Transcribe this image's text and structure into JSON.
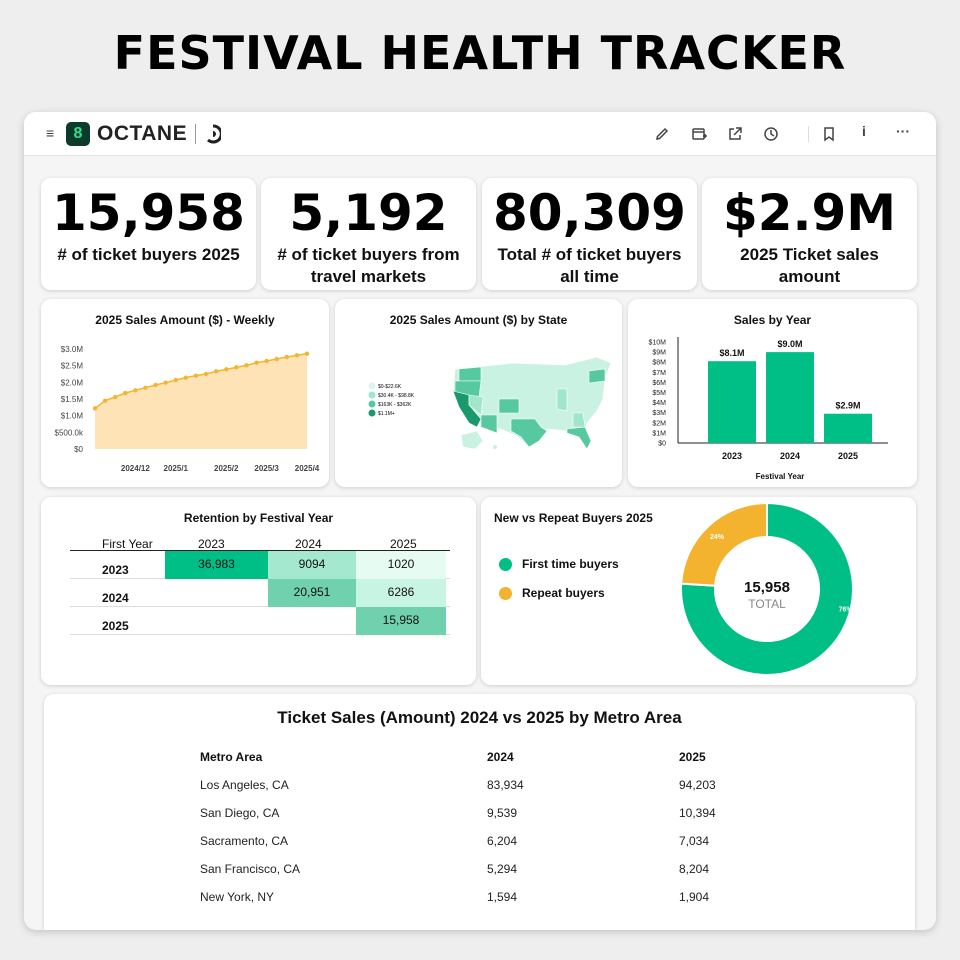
{
  "page_title": "FESTIVAL HEALTH TRACKER",
  "app": {
    "name": "OCTANE",
    "logo_letter": "8"
  },
  "toolbar": {
    "icons": [
      "edit-icon",
      "add-to-dashboard-icon",
      "share-icon",
      "history-icon",
      "bookmark-icon",
      "info-icon",
      "more-icon"
    ],
    "info_label": "i",
    "more_label": "···",
    "menu_label": "≡"
  },
  "kpis": [
    {
      "value": "15,958",
      "label": "# of ticket buyers 2025"
    },
    {
      "value": "5,192",
      "label": "# of ticket buyers from travel markets"
    },
    {
      "value": "80,309",
      "label": "Total # of ticket buyers all time"
    },
    {
      "value": "$2.9M",
      "label": "2025 Ticket sales amount"
    }
  ],
  "colors": {
    "accent_green": "#00bf86",
    "line_orange": "#f2b632",
    "area_fill": "#fde3b5",
    "repeat_yellow": "#f3b32e"
  },
  "weekly": {
    "title": "2025 Sales Amount ($) - Weekly",
    "y_ticks": [
      "$3.0M",
      "$2.5M",
      "$2.0M",
      "$1.5M",
      "$1.0M",
      "$500.0k",
      "$0"
    ],
    "x_ticks": [
      "2024/12",
      "2025/1",
      "2025/2",
      "2025/3",
      "2025/4"
    ]
  },
  "map": {
    "title": "2025 Sales Amount ($) by State",
    "legend": [
      "$0-$22.6K",
      "$30.4K - $98.8K",
      "$163K - $362K",
      "$1.1M+"
    ],
    "legend_colors": [
      "#d9f7ec",
      "#9fe6cb",
      "#56c9a0",
      "#1a9a6c"
    ]
  },
  "sales_by_year": {
    "title": "Sales by Year",
    "y_ticks": [
      "$10M",
      "$9M",
      "$8M",
      "$7M",
      "$6M",
      "$5M",
      "$4M",
      "$3M",
      "$2M",
      "$1M",
      "$0"
    ],
    "bar_labels": [
      "$8.1M",
      "$9.0M",
      "$2.9M"
    ],
    "xlabel": "Festival Year"
  },
  "retention": {
    "title": "Retention by Festival Year",
    "corner": "First Year",
    "cols": [
      "2023",
      "2024",
      "2025"
    ],
    "rows": [
      {
        "year": "2023",
        "cells": [
          "36,983",
          "9094",
          "1020"
        ]
      },
      {
        "year": "2024",
        "cells": [
          "",
          "20,951",
          "6286"
        ]
      },
      {
        "year": "2025",
        "cells": [
          "",
          "",
          "15,958"
        ]
      }
    ]
  },
  "donut": {
    "title": "New vs Repeat Buyers 2025",
    "legend": [
      "First time buyers",
      "Repeat buyers"
    ],
    "center_value": "15,958",
    "center_label": "TOTAL",
    "first_time_pct": 76,
    "repeat_pct": 24,
    "first_label": "76%",
    "repeat_label": "24%"
  },
  "metro": {
    "title": "Ticket Sales (Amount) 2024 vs 2025 by Metro Area",
    "headers": [
      "Metro Area",
      "2024",
      "2025"
    ],
    "rows": [
      [
        "Los Angeles, CA",
        "83,934",
        "94,203"
      ],
      [
        "San Diego, CA",
        "9,539",
        "10,394"
      ],
      [
        "Sacramento, CA",
        "6,204",
        "7,034"
      ],
      [
        "San Francisco, CA",
        "5,294",
        "8,204"
      ],
      [
        "New York, NY",
        "1,594",
        "1,904"
      ]
    ]
  },
  "chart_data": [
    {
      "type": "area",
      "title": "2025 Sales Amount ($) - Weekly",
      "xlabel": "",
      "ylabel": "",
      "x": [
        "2024/11/10",
        "2024/11/17",
        "2024/11/24",
        "2024/12/1",
        "2024/12/8",
        "2024/12/15",
        "2024/12/22",
        "2024/12/29",
        "2025/1/5",
        "2025/1/12",
        "2025/1/19",
        "2025/1/26",
        "2025/2/2",
        "2025/2/9",
        "2025/2/16",
        "2025/2/23",
        "2025/3/2",
        "2025/3/9",
        "2025/3/16",
        "2025/3/23",
        "2025/3/30",
        "2025/4/6"
      ],
      "values": [
        1220000,
        1450000,
        1560000,
        1680000,
        1760000,
        1840000,
        1920000,
        1990000,
        2070000,
        2140000,
        2200000,
        2250000,
        2330000,
        2390000,
        2450000,
        2510000,
        2590000,
        2640000,
        2700000,
        2760000,
        2810000,
        2860000
      ],
      "ylim": [
        0,
        3000000
      ],
      "x_ticks": [
        "2024/12",
        "2025/1",
        "2025/2",
        "2025/3",
        "2025/4"
      ]
    },
    {
      "type": "bar",
      "title": "Sales by Year",
      "categories": [
        "2023",
        "2024",
        "2025"
      ],
      "values": [
        8.1,
        9.0,
        2.9
      ],
      "xlabel": "Festival Year",
      "ylabel": "",
      "ylim": [
        0,
        10
      ]
    },
    {
      "type": "pie",
      "title": "New vs Repeat Buyers 2025",
      "categories": [
        "First time buyers",
        "Repeat buyers"
      ],
      "values": [
        76,
        24
      ]
    }
  ]
}
